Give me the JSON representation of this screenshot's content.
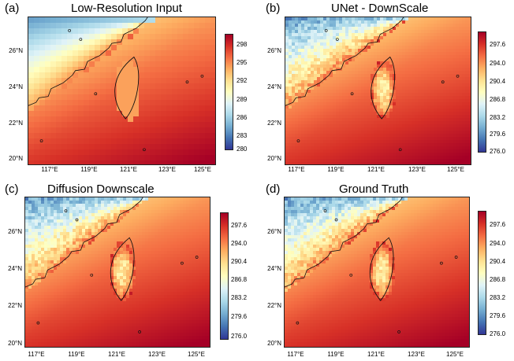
{
  "chart_data": [
    {
      "type": "heatmap",
      "letter": "(a)",
      "title": "Low-Resolution  Input",
      "yticks": [
        "26°N",
        "24°N",
        "22°N",
        "20°N"
      ],
      "xticks": [
        "117°E",
        "119°E",
        "121°E",
        "123°E",
        "125°E"
      ],
      "colorbar_ticks": [
        "298",
        "295",
        "292",
        "289",
        "286",
        "283",
        "280"
      ],
      "colorbar_range": [
        280,
        299
      ],
      "smooth": true
    },
    {
      "type": "heatmap",
      "letter": "(b)",
      "title": "UNet - DownScale",
      "yticks": [
        "26°N",
        "24°N",
        "22°N",
        "20°N"
      ],
      "xticks": [
        "117°E",
        "119°E",
        "121°E",
        "123°E",
        "125°E"
      ],
      "colorbar_ticks": [
        "297.6",
        "294.0",
        "290.4",
        "286.8",
        "283.2",
        "279.6",
        "276.0"
      ],
      "colorbar_range": [
        276.0,
        299.0
      ],
      "smooth": false
    },
    {
      "type": "heatmap",
      "letter": "(c)",
      "title": "Diffusion   Downscale",
      "yticks": [
        "26°N",
        "24°N",
        "22°N",
        "20°N"
      ],
      "xticks": [
        "117°E",
        "119°E",
        "121°E",
        "123°E",
        "125°E"
      ],
      "colorbar_ticks": [
        "297.6",
        "294.0",
        "290.4",
        "286.8",
        "283.2",
        "279.6",
        "276.0"
      ],
      "colorbar_range": [
        276.0,
        299.0
      ],
      "smooth": false
    },
    {
      "type": "heatmap",
      "letter": "(d)",
      "title": "Ground  Truth",
      "yticks": [
        "26°N",
        "24°N",
        "22°N",
        "20°N"
      ],
      "xticks": [
        "117°E",
        "119°E",
        "121°E",
        "123°E",
        "125°E"
      ],
      "colorbar_ticks": [
        "297.6",
        "294.0",
        "290.4",
        "286.8",
        "283.2",
        "279.6",
        "276.0"
      ],
      "colorbar_range": [
        276.0,
        299.0
      ],
      "smooth": false
    }
  ],
  "colormap": [
    "#313695",
    "#4575b4",
    "#74add1",
    "#abd9e9",
    "#e0f3f8",
    "#ffffbf",
    "#fee090",
    "#fdae61",
    "#f46d43",
    "#d73027",
    "#a50026"
  ]
}
